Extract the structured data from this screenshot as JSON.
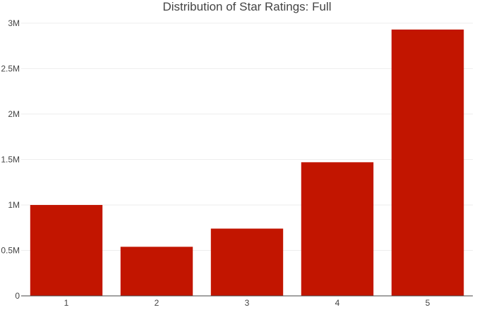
{
  "chart_data": {
    "type": "bar",
    "title": "Distribution of Star Ratings: Full",
    "xlabel": "",
    "ylabel": "",
    "categories": [
      "1",
      "2",
      "3",
      "4",
      "5"
    ],
    "values": [
      1000000,
      540000,
      740000,
      1470000,
      2930000
    ],
    "ylim": [
      0,
      3100000
    ],
    "yticks": [
      0,
      500000,
      1000000,
      1500000,
      2000000,
      2500000,
      3000000
    ],
    "ytick_labels": [
      "0",
      "0.5M",
      "1M",
      "1.5M",
      "2M",
      "2.5M",
      "3M"
    ],
    "bar_color": "#c21500",
    "grid": true,
    "legend": "none"
  }
}
